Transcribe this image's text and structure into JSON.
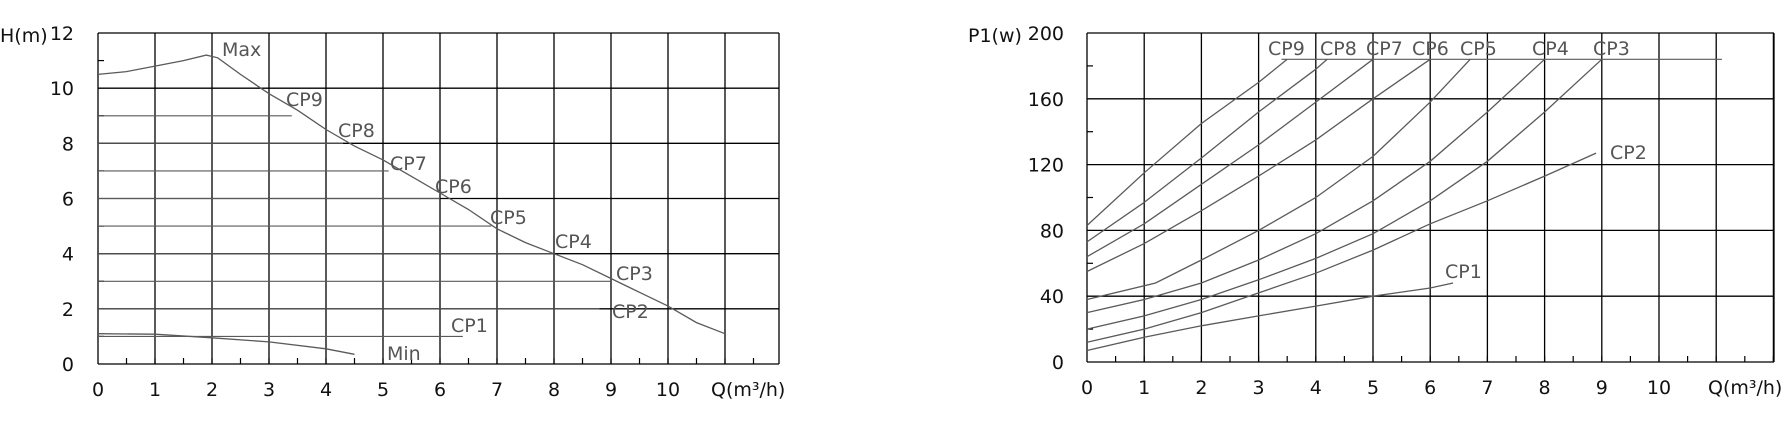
{
  "chart_data": [
    {
      "type": "line",
      "title": "",
      "xlabel": "Q(m³/h)",
      "ylabel": "H(m)",
      "xlim": [
        0,
        12
      ],
      "ylim": [
        0,
        12
      ],
      "xticks": [
        "0",
        "1",
        "2",
        "3",
        "4",
        "5",
        "6",
        "7",
        "8",
        "9",
        "10"
      ],
      "yticks": [
        "0",
        "2",
        "4",
        "6",
        "8",
        "10",
        "12"
      ],
      "grid": true,
      "series": [
        {
          "name": "Max",
          "x": [
            0,
            0.5,
            1,
            1.5,
            1.9,
            2.1,
            2.5,
            3,
            3.5,
            4,
            4.5,
            5,
            5.5,
            6,
            6.5,
            7,
            7.5,
            8,
            8.5,
            9,
            9.5,
            10,
            10.5,
            11
          ],
          "y": [
            10.5,
            10.6,
            10.8,
            11.0,
            11.2,
            11.1,
            10.5,
            9.8,
            9.2,
            8.5,
            7.9,
            7.4,
            6.8,
            6.2,
            5.6,
            4.9,
            4.4,
            4.0,
            3.6,
            3.1,
            2.6,
            2.1,
            1.5,
            1.1
          ]
        },
        {
          "name": "CP9",
          "x": [
            0,
            3.4
          ],
          "y": [
            9,
            9
          ]
        },
        {
          "name": "CP8",
          "x": [
            0,
            4.3
          ],
          "y": [
            8,
            8
          ]
        },
        {
          "name": "CP7",
          "x": [
            0,
            5.1
          ],
          "y": [
            7,
            7
          ]
        },
        {
          "name": "CP6",
          "x": [
            0,
            6.0
          ],
          "y": [
            6,
            6
          ]
        },
        {
          "name": "CP5",
          "x": [
            0,
            6.9
          ],
          "y": [
            5,
            5
          ]
        },
        {
          "name": "CP4",
          "x": [
            0,
            8.0
          ],
          "y": [
            4,
            4
          ]
        },
        {
          "name": "CP3",
          "x": [
            0,
            9.0
          ],
          "y": [
            3,
            3
          ]
        },
        {
          "name": "CP2",
          "x": [
            0,
            8.8
          ],
          "y": [
            2,
            2
          ]
        },
        {
          "name": "CP1",
          "x": [
            0,
            6.4
          ],
          "y": [
            1,
            1
          ]
        },
        {
          "name": "Min",
          "x": [
            0,
            1,
            2,
            3,
            4,
            4.5
          ],
          "y": [
            1.1,
            1.08,
            0.95,
            0.8,
            0.55,
            0.35
          ]
        }
      ],
      "annotations": [
        "Max",
        "CP9",
        "CP8",
        "CP7",
        "CP6",
        "CP5",
        "CP4",
        "CP3",
        "CP2",
        "CP1",
        "Min"
      ]
    },
    {
      "type": "line",
      "title": "",
      "xlabel": "Q(m³/h)",
      "ylabel": "P1(w)",
      "xlim": [
        0,
        12
      ],
      "ylim": [
        0,
        200
      ],
      "xticks": [
        "0",
        "1",
        "2",
        "3",
        "4",
        "5",
        "6",
        "7",
        "8",
        "9",
        "10"
      ],
      "yticks": [
        "0",
        "40",
        "80",
        "120",
        "160",
        "200"
      ],
      "grid": true,
      "series": [
        {
          "name": "CP9",
          "x": [
            0,
            1,
            2,
            3,
            3.5
          ],
          "y": [
            83,
            115,
            145,
            170,
            184
          ]
        },
        {
          "name": "CP8",
          "x": [
            0,
            1,
            2,
            3,
            4,
            4.2
          ],
          "y": [
            73,
            97,
            124,
            152,
            178,
            184
          ]
        },
        {
          "name": "CP7",
          "x": [
            0,
            1,
            2,
            3,
            4,
            5
          ],
          "y": [
            64,
            84,
            108,
            132,
            158,
            184
          ]
        },
        {
          "name": "CP6",
          "x": [
            0,
            1,
            2,
            3,
            4,
            5,
            6
          ],
          "y": [
            55,
            72,
            92,
            113,
            135,
            160,
            184
          ]
        },
        {
          "name": "CP5",
          "x": [
            0,
            1.2,
            2,
            3,
            4,
            5,
            6,
            6.7
          ],
          "y": [
            38,
            48,
            62,
            80,
            100,
            125,
            158,
            184
          ]
        },
        {
          "name": "CP4",
          "x": [
            0,
            1,
            2,
            3,
            4,
            5,
            6,
            7,
            8
          ],
          "y": [
            30,
            38,
            48,
            62,
            78,
            98,
            122,
            152,
            184
          ]
        },
        {
          "name": "CP3",
          "x": [
            0,
            1,
            2,
            3,
            4,
            5,
            6,
            7,
            8,
            9
          ],
          "y": [
            20,
            28,
            38,
            50,
            63,
            78,
            98,
            122,
            152,
            184
          ]
        },
        {
          "name": "CP2",
          "x": [
            0,
            1,
            2,
            3,
            4,
            5,
            6,
            7,
            8,
            8.9
          ],
          "y": [
            12,
            20,
            30,
            42,
            54,
            68,
            84,
            98,
            113,
            127
          ]
        },
        {
          "name": "CP1",
          "x": [
            0,
            1,
            2,
            3,
            4,
            5,
            6,
            6.4
          ],
          "y": [
            7,
            15,
            22,
            28,
            34,
            40,
            45,
            48
          ]
        }
      ],
      "reference_line": {
        "y": 184,
        "x": [
          3.4,
          11.1
        ]
      },
      "annotations": [
        "CP9",
        "CP8",
        "CP7",
        "CP6",
        "CP5",
        "CP4",
        "CP3",
        "CP2",
        "CP1"
      ]
    }
  ]
}
